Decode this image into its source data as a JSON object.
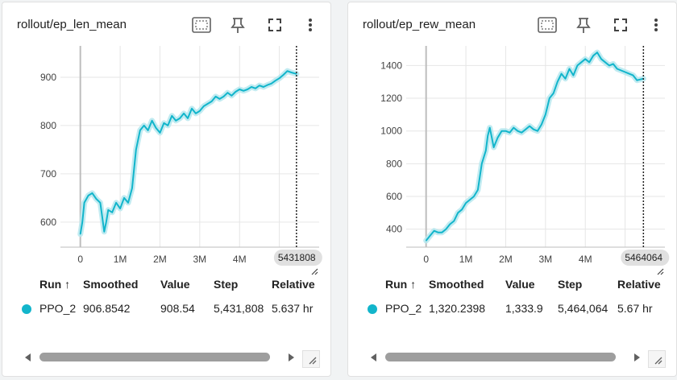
{
  "colors": {
    "series": "#12b5cb",
    "band": "#b6e8ef",
    "grid": "#e6e6e6",
    "axis": "#9e9e9e"
  },
  "icons": [
    "fit-domain-icon",
    "pin-icon",
    "fullscreen-icon",
    "more-vert-icon",
    "resize-icon",
    "scroll-left-icon",
    "scroll-right-icon"
  ],
  "table_headers": {
    "run": "Run ↑",
    "smoothed": "Smoothed",
    "value": "Value",
    "step": "Step",
    "relative": "Relative"
  },
  "cards": [
    {
      "title": "rollout/ep_len_mean",
      "row": {
        "run": "PPO_2",
        "smoothed": "906.8542",
        "value": "908.54",
        "step": "5,431,808",
        "relative": "5.637 hr"
      },
      "cursor_label": "5431808"
    },
    {
      "title": "rollout/ep_rew_mean",
      "row": {
        "run": "PPO_2",
        "smoothed": "1,320.2398",
        "value": "1,333.9",
        "step": "5,464,064",
        "relative": "5.67 hr"
      },
      "cursor_label": "5464064"
    }
  ],
  "chart_data": [
    {
      "type": "line",
      "title": "rollout/ep_len_mean",
      "xlabel": "",
      "ylabel": "",
      "xlim": [
        -0.5,
        6.0
      ],
      "ylim": [
        548,
        965
      ],
      "x_ticks": [
        0,
        1,
        2,
        3,
        4,
        5
      ],
      "x_tick_labels": [
        "0",
        "1M",
        "2M",
        "3M",
        "4M",
        ""
      ],
      "y_ticks": [
        600,
        700,
        800,
        900
      ],
      "y_tick_labels": [
        "600",
        "700",
        "800",
        "900"
      ],
      "grid": true,
      "cursor_x": 5.43,
      "series": [
        {
          "name": "PPO_2",
          "x": [
            0,
            0.05,
            0.1,
            0.2,
            0.3,
            0.4,
            0.5,
            0.55,
            0.6,
            0.65,
            0.7,
            0.8,
            0.9,
            1.0,
            1.1,
            1.2,
            1.3,
            1.4,
            1.5,
            1.6,
            1.7,
            1.8,
            1.9,
            2.0,
            2.1,
            2.2,
            2.3,
            2.4,
            2.5,
            2.6,
            2.7,
            2.8,
            2.9,
            3.0,
            3.1,
            3.2,
            3.3,
            3.4,
            3.5,
            3.6,
            3.7,
            3.8,
            3.9,
            4.0,
            4.1,
            4.2,
            4.3,
            4.4,
            4.5,
            4.6,
            4.7,
            4.8,
            4.9,
            5.0,
            5.1,
            5.2,
            5.3,
            5.43
          ],
          "y": [
            575,
            600,
            640,
            655,
            660,
            648,
            640,
            610,
            580,
            600,
            625,
            620,
            640,
            628,
            650,
            640,
            670,
            750,
            790,
            800,
            790,
            810,
            795,
            785,
            805,
            800,
            820,
            810,
            815,
            825,
            815,
            835,
            825,
            830,
            840,
            845,
            850,
            860,
            855,
            860,
            868,
            862,
            870,
            875,
            872,
            875,
            880,
            877,
            883,
            880,
            884,
            887,
            893,
            898,
            905,
            913,
            910,
            907
          ]
        }
      ]
    },
    {
      "type": "line",
      "title": "rollout/ep_rew_mean",
      "xlabel": "",
      "ylabel": "",
      "xlim": [
        -0.5,
        6.0
      ],
      "ylim": [
        290,
        1520
      ],
      "x_ticks": [
        0,
        1,
        2,
        3,
        4,
        5
      ],
      "x_tick_labels": [
        "0",
        "1M",
        "2M",
        "3M",
        "4M",
        ""
      ],
      "y_ticks": [
        400,
        600,
        800,
        1000,
        1200,
        1400
      ],
      "y_tick_labels": [
        "400",
        "600",
        "800",
        "1000",
        "1200",
        "1400"
      ],
      "grid": true,
      "cursor_x": 5.46,
      "series": [
        {
          "name": "PPO_2",
          "x": [
            0,
            0.1,
            0.2,
            0.3,
            0.4,
            0.5,
            0.6,
            0.7,
            0.8,
            0.9,
            1.0,
            1.1,
            1.2,
            1.3,
            1.4,
            1.5,
            1.55,
            1.6,
            1.65,
            1.7,
            1.8,
            1.9,
            2.0,
            2.1,
            2.2,
            2.3,
            2.4,
            2.5,
            2.6,
            2.7,
            2.8,
            2.9,
            3.0,
            3.1,
            3.2,
            3.3,
            3.4,
            3.5,
            3.6,
            3.7,
            3.8,
            3.9,
            4.0,
            4.1,
            4.2,
            4.3,
            4.4,
            4.5,
            4.6,
            4.7,
            4.8,
            4.9,
            5.0,
            5.1,
            5.2,
            5.3,
            5.46
          ],
          "y": [
            330,
            360,
            390,
            380,
            380,
            400,
            430,
            450,
            500,
            520,
            560,
            580,
            600,
            640,
            800,
            880,
            970,
            1020,
            960,
            900,
            960,
            1000,
            1000,
            990,
            1020,
            1000,
            990,
            1010,
            1030,
            1010,
            1000,
            1040,
            1100,
            1200,
            1230,
            1300,
            1350,
            1320,
            1380,
            1340,
            1400,
            1420,
            1440,
            1420,
            1460,
            1480,
            1440,
            1420,
            1400,
            1410,
            1380,
            1370,
            1360,
            1350,
            1340,
            1310,
            1320
          ]
        }
      ]
    }
  ]
}
